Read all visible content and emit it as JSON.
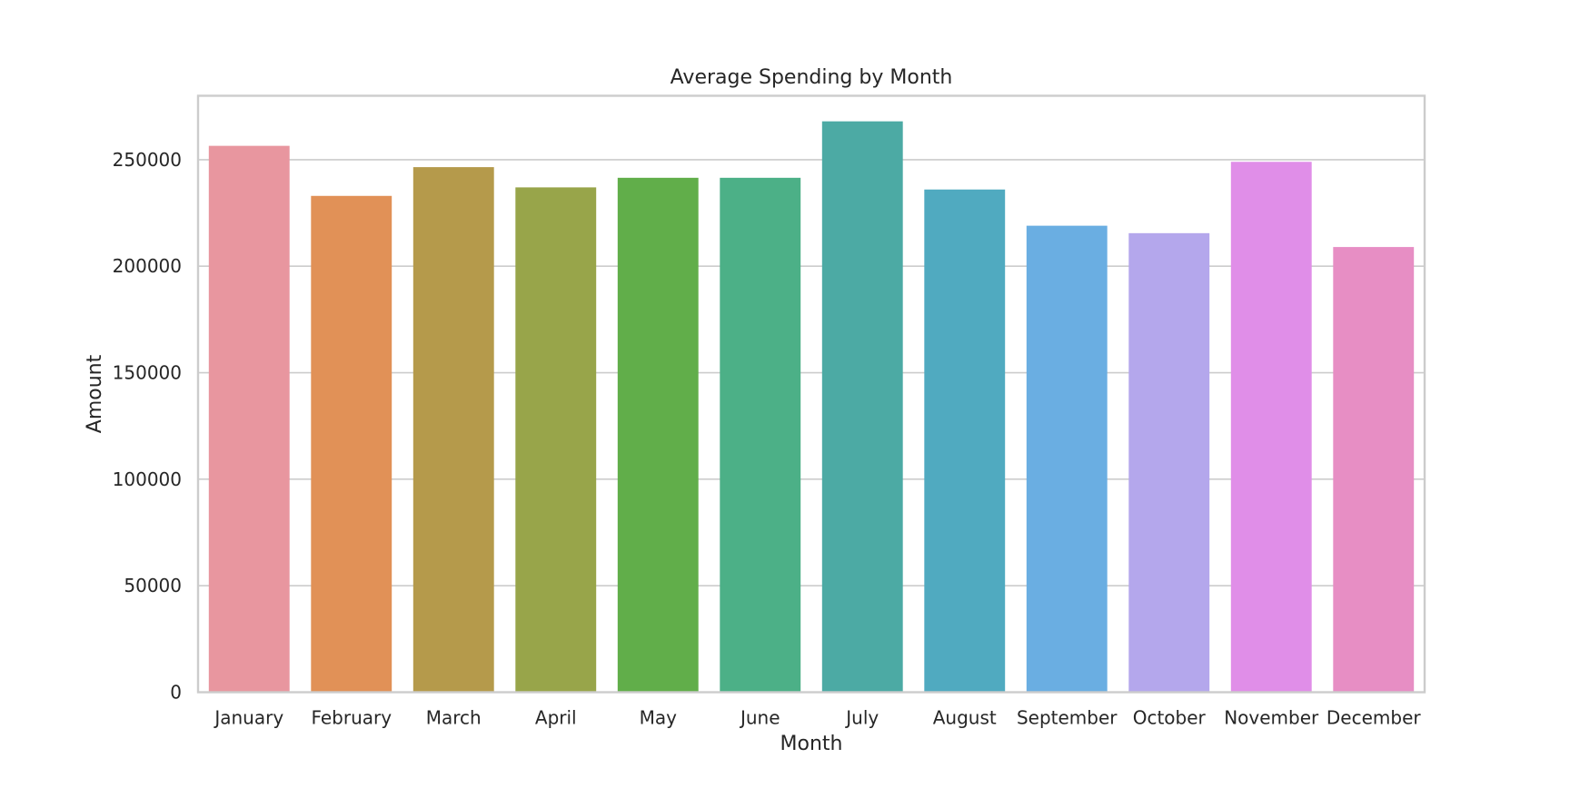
{
  "chart_data": {
    "type": "bar",
    "title": "Average Spending by Month",
    "xlabel": "Month",
    "ylabel": "Amount",
    "categories": [
      "January",
      "February",
      "March",
      "April",
      "May",
      "June",
      "July",
      "August",
      "September",
      "October",
      "November",
      "December"
    ],
    "values": [
      256500,
      233000,
      246500,
      237000,
      241500,
      241500,
      268000,
      236000,
      219000,
      215500,
      249000,
      209000
    ],
    "colors": [
      "#e8969f",
      "#e19157",
      "#b59a4b",
      "#98a54a",
      "#61ae4a",
      "#4cb087",
      "#4caaa4",
      "#50aac0",
      "#6aaee2",
      "#b4a7ec",
      "#e08ee8",
      "#e78ec4"
    ],
    "ylim": [
      0,
      280000
    ],
    "yticks": [
      0,
      50000,
      100000,
      150000,
      200000,
      250000
    ],
    "ytick_labels": [
      "0",
      "50000",
      "100000",
      "150000",
      "200000",
      "250000"
    ],
    "grid": true
  }
}
